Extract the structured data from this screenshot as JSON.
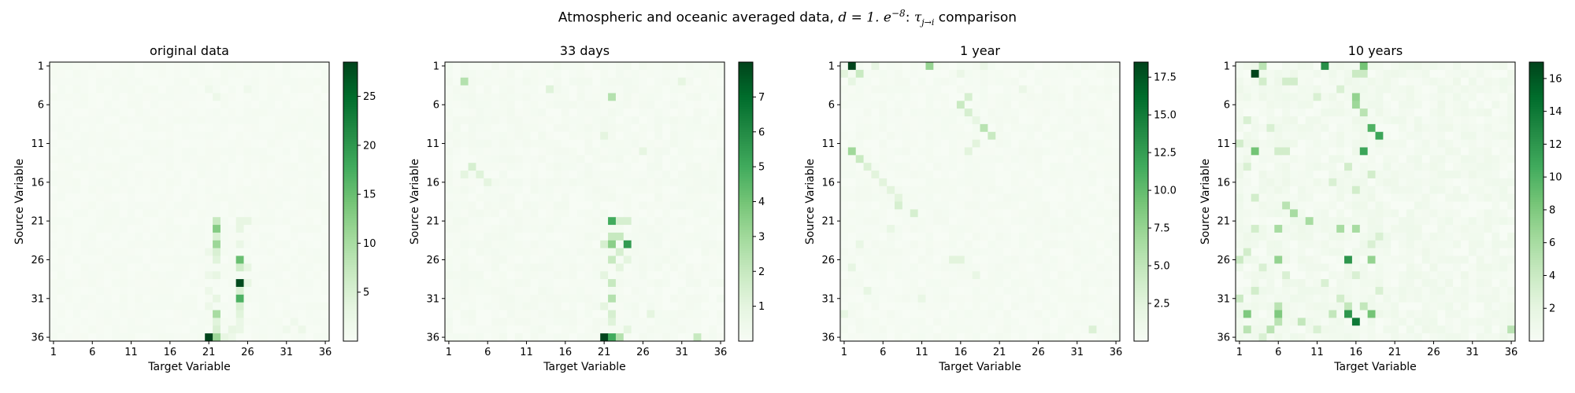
{
  "figure": {
    "suptitle_prefix": "Atmospheric and oceanic averaged data, ",
    "suptitle_math": "d = 1. e",
    "suptitle_exp": "−8",
    "suptitle_colon": ": ",
    "suptitle_tau": "τ",
    "suptitle_sub": "j→i",
    "suptitle_suffix": " comparison"
  },
  "colormap": {
    "name": "Greens",
    "stops": [
      "#f7fcf5",
      "#e5f5e0",
      "#c7e9c0",
      "#a1d99b",
      "#74c476",
      "#41ab5d",
      "#238b45",
      "#006d2c",
      "#00441b"
    ]
  },
  "chart_data": [
    {
      "type": "heatmap",
      "title": "original data",
      "xlabel": "Target Variable",
      "ylabel": "Source Variable",
      "size": 36,
      "tick_labels": [
        "1",
        "6",
        "11",
        "16",
        "21",
        "26",
        "31",
        "36"
      ],
      "vmin": 0,
      "vmax": 28.5,
      "colorbar_ticks": [
        5,
        10,
        15,
        20,
        25
      ],
      "background_level": 0.6,
      "cells": [
        {
          "s": 36,
          "t": 21,
          "v": 28.5
        },
        {
          "s": 29,
          "t": 25,
          "v": 28
        },
        {
          "s": 31,
          "t": 25,
          "v": 17
        },
        {
          "s": 26,
          "t": 25,
          "v": 15
        },
        {
          "s": 22,
          "t": 22,
          "v": 13
        },
        {
          "s": 24,
          "t": 22,
          "v": 11
        },
        {
          "s": 36,
          "t": 22,
          "v": 11
        },
        {
          "s": 33,
          "t": 22,
          "v": 10
        },
        {
          "s": 21,
          "t": 22,
          "v": 7
        },
        {
          "s": 23,
          "t": 22,
          "v": 5
        },
        {
          "s": 25,
          "t": 22,
          "v": 5
        },
        {
          "s": 26,
          "t": 22,
          "v": 4
        },
        {
          "s": 27,
          "t": 25,
          "v": 6
        },
        {
          "s": 30,
          "t": 25,
          "v": 5
        },
        {
          "s": 32,
          "t": 25,
          "v": 5
        },
        {
          "s": 35,
          "t": 22,
          "v": 5
        },
        {
          "s": 34,
          "t": 22,
          "v": 4
        },
        {
          "s": 33,
          "t": 25,
          "v": 4
        },
        {
          "s": 21,
          "t": 25,
          "v": 3
        },
        {
          "s": 22,
          "t": 25,
          "v": 3
        },
        {
          "s": 21,
          "t": 26,
          "v": 3
        },
        {
          "s": 35,
          "t": 24,
          "v": 3
        },
        {
          "s": 36,
          "t": 23,
          "v": 3
        },
        {
          "s": 27,
          "t": 26,
          "v": 3
        },
        {
          "s": 29,
          "t": 26,
          "v": 3
        },
        {
          "s": 31,
          "t": 22,
          "v": 3
        },
        {
          "s": 28,
          "t": 22,
          "v": 3
        },
        {
          "s": 28,
          "t": 21,
          "v": 2
        },
        {
          "s": 32,
          "t": 21,
          "v": 2
        },
        {
          "s": 25,
          "t": 21,
          "v": 2
        },
        {
          "s": 30,
          "t": 21,
          "v": 2
        },
        {
          "s": 24,
          "t": 25,
          "v": 2.5
        },
        {
          "s": 34,
          "t": 25,
          "v": 2.5
        },
        {
          "s": 35,
          "t": 25,
          "v": 2.5
        },
        {
          "s": 5,
          "t": 22,
          "v": 2
        },
        {
          "s": 4,
          "t": 21,
          "v": 1.5
        },
        {
          "s": 4,
          "t": 26,
          "v": 1.5
        },
        {
          "s": 35,
          "t": 33,
          "v": 2
        },
        {
          "s": 35,
          "t": 31,
          "v": 1.5
        },
        {
          "s": 34,
          "t": 32,
          "v": 1.5
        },
        {
          "s": 36,
          "t": 24,
          "v": 2
        }
      ]
    },
    {
      "type": "heatmap",
      "title": "33 days",
      "xlabel": "Target Variable",
      "ylabel": "Source Variable",
      "size": 36,
      "tick_labels": [
        "1",
        "6",
        "11",
        "16",
        "21",
        "26",
        "31",
        "36"
      ],
      "vmin": 0,
      "vmax": 8,
      "colorbar_ticks": [
        1,
        2,
        3,
        4,
        5,
        6,
        7
      ],
      "background_level": 0.25,
      "cells": [
        {
          "s": 36,
          "t": 21,
          "v": 8
        },
        {
          "s": 24,
          "t": 24,
          "v": 5.5
        },
        {
          "s": 21,
          "t": 22,
          "v": 5
        },
        {
          "s": 36,
          "t": 22,
          "v": 5
        },
        {
          "s": 24,
          "t": 22,
          "v": 3.5
        },
        {
          "s": 3,
          "t": 3,
          "v": 2.5
        },
        {
          "s": 5,
          "t": 22,
          "v": 2.5
        },
        {
          "s": 31,
          "t": 22,
          "v": 2.5
        },
        {
          "s": 36,
          "t": 23,
          "v": 2.5
        },
        {
          "s": 23,
          "t": 22,
          "v": 2
        },
        {
          "s": 23,
          "t": 23,
          "v": 2
        },
        {
          "s": 26,
          "t": 22,
          "v": 2
        },
        {
          "s": 29,
          "t": 22,
          "v": 2
        },
        {
          "s": 36,
          "t": 33,
          "v": 2
        },
        {
          "s": 21,
          "t": 23,
          "v": 1.5
        },
        {
          "s": 21,
          "t": 24,
          "v": 1.5
        },
        {
          "s": 25,
          "t": 23,
          "v": 1.5
        },
        {
          "s": 33,
          "t": 22,
          "v": 1.5
        },
        {
          "s": 34,
          "t": 22,
          "v": 1.2
        },
        {
          "s": 14,
          "t": 4,
          "v": 1.5
        },
        {
          "s": 15,
          "t": 5,
          "v": 1.2
        },
        {
          "s": 15,
          "t": 3,
          "v": 1
        },
        {
          "s": 4,
          "t": 14,
          "v": 1.2
        },
        {
          "s": 16,
          "t": 6,
          "v": 1
        },
        {
          "s": 24,
          "t": 21,
          "v": 1.5
        },
        {
          "s": 26,
          "t": 24,
          "v": 1
        },
        {
          "s": 27,
          "t": 23,
          "v": 1
        },
        {
          "s": 28,
          "t": 21,
          "v": 1
        },
        {
          "s": 32,
          "t": 21,
          "v": 1
        },
        {
          "s": 10,
          "t": 21,
          "v": 1
        },
        {
          "s": 12,
          "t": 26,
          "v": 0.9
        },
        {
          "s": 35,
          "t": 24,
          "v": 1
        },
        {
          "s": 33,
          "t": 27,
          "v": 1
        },
        {
          "s": 3,
          "t": 31,
          "v": 0.9
        }
      ]
    },
    {
      "type": "heatmap",
      "title": "1 year",
      "xlabel": "Target Variable",
      "ylabel": "Source Variable",
      "size": 36,
      "tick_labels": [
        "1",
        "6",
        "11",
        "16",
        "21",
        "26",
        "31",
        "36"
      ],
      "vmin": 0,
      "vmax": 18.5,
      "colorbar_ticks": [
        2.5,
        5.0,
        7.5,
        10.0,
        12.5,
        15.0,
        17.5
      ],
      "background_level": 0.5,
      "cells": [
        {
          "s": 1,
          "t": 2,
          "v": 18.5
        },
        {
          "s": 1,
          "t": 12,
          "v": 7.5
        },
        {
          "s": 12,
          "t": 2,
          "v": 7
        },
        {
          "s": 9,
          "t": 19,
          "v": 5.5
        },
        {
          "s": 6,
          "t": 16,
          "v": 4.5
        },
        {
          "s": 10,
          "t": 20,
          "v": 4.5
        },
        {
          "s": 2,
          "t": 3,
          "v": 4.5
        },
        {
          "s": 13,
          "t": 3,
          "v": 4.5
        },
        {
          "s": 5,
          "t": 17,
          "v": 3.5
        },
        {
          "s": 7,
          "t": 17,
          "v": 3.5
        },
        {
          "s": 19,
          "t": 8,
          "v": 3.5
        },
        {
          "s": 20,
          "t": 10,
          "v": 3.5
        },
        {
          "s": 14,
          "t": 4,
          "v": 3
        },
        {
          "s": 15,
          "t": 5,
          "v": 2.5
        },
        {
          "s": 16,
          "t": 6,
          "v": 2.5
        },
        {
          "s": 17,
          "t": 7,
          "v": 2.5
        },
        {
          "s": 18,
          "t": 8,
          "v": 2.5
        },
        {
          "s": 11,
          "t": 18,
          "v": 2.5
        },
        {
          "s": 12,
          "t": 17,
          "v": 2.5
        },
        {
          "s": 35,
          "t": 33,
          "v": 3
        },
        {
          "s": 26,
          "t": 15,
          "v": 2.5
        },
        {
          "s": 26,
          "t": 16,
          "v": 2.5
        },
        {
          "s": 8,
          "t": 18,
          "v": 2
        },
        {
          "s": 1,
          "t": 5,
          "v": 2
        },
        {
          "s": 2,
          "t": 1,
          "v": 2.5
        },
        {
          "s": 3,
          "t": 2,
          "v": 2
        },
        {
          "s": 27,
          "t": 2,
          "v": 2
        },
        {
          "s": 33,
          "t": 1,
          "v": 2
        },
        {
          "s": 30,
          "t": 4,
          "v": 2
        },
        {
          "s": 22,
          "t": 7,
          "v": 1.8
        },
        {
          "s": 24,
          "t": 3,
          "v": 1.8
        },
        {
          "s": 28,
          "t": 18,
          "v": 1.8
        },
        {
          "s": 31,
          "t": 11,
          "v": 1.8
        },
        {
          "s": 1,
          "t": 19,
          "v": 1.5
        },
        {
          "s": 2,
          "t": 16,
          "v": 1.5
        },
        {
          "s": 4,
          "t": 24,
          "v": 1.5
        }
      ]
    },
    {
      "type": "heatmap",
      "title": "10 years",
      "xlabel": "Target Variable",
      "ylabel": "Source Variable",
      "size": 36,
      "tick_labels": [
        "1",
        "6",
        "11",
        "16",
        "21",
        "26",
        "31",
        "36"
      ],
      "vmin": 0,
      "vmax": 17,
      "colorbar_ticks": [
        2,
        4,
        6,
        8,
        10,
        12,
        14,
        16
      ],
      "background_level": 1.0,
      "cells": [
        {
          "s": 2,
          "t": 3,
          "v": 17
        },
        {
          "s": 34,
          "t": 16,
          "v": 14
        },
        {
          "s": 1,
          "t": 12,
          "v": 12.5
        },
        {
          "s": 26,
          "t": 15,
          "v": 12
        },
        {
          "s": 33,
          "t": 15,
          "v": 12
        },
        {
          "s": 10,
          "t": 19,
          "v": 11
        },
        {
          "s": 12,
          "t": 17,
          "v": 11
        },
        {
          "s": 9,
          "t": 18,
          "v": 10
        },
        {
          "s": 1,
          "t": 17,
          "v": 8.5
        },
        {
          "s": 12,
          "t": 3,
          "v": 8.5
        },
        {
          "s": 33,
          "t": 18,
          "v": 8.5
        },
        {
          "s": 33,
          "t": 2,
          "v": 8
        },
        {
          "s": 33,
          "t": 6,
          "v": 8
        },
        {
          "s": 26,
          "t": 6,
          "v": 7
        },
        {
          "s": 26,
          "t": 18,
          "v": 7
        },
        {
          "s": 5,
          "t": 16,
          "v": 7
        },
        {
          "s": 6,
          "t": 16,
          "v": 6.5
        },
        {
          "s": 20,
          "t": 8,
          "v": 6
        },
        {
          "s": 21,
          "t": 10,
          "v": 6
        },
        {
          "s": 22,
          "t": 6,
          "v": 6
        },
        {
          "s": 22,
          "t": 14,
          "v": 6
        },
        {
          "s": 22,
          "t": 16,
          "v": 6
        },
        {
          "s": 19,
          "t": 7,
          "v": 5
        },
        {
          "s": 1,
          "t": 4,
          "v": 5
        },
        {
          "s": 7,
          "t": 17,
          "v": 5
        },
        {
          "s": 2,
          "t": 16,
          "v": 4
        },
        {
          "s": 2,
          "t": 17,
          "v": 4
        },
        {
          "s": 35,
          "t": 2,
          "v": 5
        },
        {
          "s": 35,
          "t": 36,
          "v": 5
        },
        {
          "s": 35,
          "t": 5,
          "v": 5
        },
        {
          "s": 32,
          "t": 6,
          "v": 5
        },
        {
          "s": 34,
          "t": 6,
          "v": 5
        },
        {
          "s": 34,
          "t": 9,
          "v": 4.5
        },
        {
          "s": 33,
          "t": 13,
          "v": 4.5
        },
        {
          "s": 32,
          "t": 15,
          "v": 4.5
        },
        {
          "s": 32,
          "t": 17,
          "v": 4.5
        },
        {
          "s": 31,
          "t": 1,
          "v": 4
        },
        {
          "s": 30,
          "t": 3,
          "v": 3.5
        },
        {
          "s": 26,
          "t": 1,
          "v": 4
        },
        {
          "s": 25,
          "t": 2,
          "v": 3.5
        },
        {
          "s": 22,
          "t": 3,
          "v": 3.5
        },
        {
          "s": 18,
          "t": 3,
          "v": 3.5
        },
        {
          "s": 12,
          "t": 6,
          "v": 3.5
        },
        {
          "s": 12,
          "t": 7,
          "v": 3.5
        },
        {
          "s": 3,
          "t": 7,
          "v": 3.5
        },
        {
          "s": 3,
          "t": 8,
          "v": 3.5
        },
        {
          "s": 3,
          "t": 4,
          "v": 3.5
        },
        {
          "s": 11,
          "t": 1,
          "v": 3.5
        },
        {
          "s": 14,
          "t": 15,
          "v": 3.5
        },
        {
          "s": 15,
          "t": 18,
          "v": 3.5
        },
        {
          "s": 17,
          "t": 16,
          "v": 3.5
        },
        {
          "s": 16,
          "t": 13,
          "v": 3
        },
        {
          "s": 23,
          "t": 19,
          "v": 3
        },
        {
          "s": 24,
          "t": 18,
          "v": 3
        },
        {
          "s": 28,
          "t": 16,
          "v": 3
        },
        {
          "s": 29,
          "t": 12,
          "v": 3
        },
        {
          "s": 30,
          "t": 19,
          "v": 3
        },
        {
          "s": 31,
          "t": 14,
          "v": 3.5
        },
        {
          "s": 35,
          "t": 11,
          "v": 3
        },
        {
          "s": 36,
          "t": 4,
          "v": 3
        },
        {
          "s": 4,
          "t": 14,
          "v": 3
        },
        {
          "s": 5,
          "t": 11,
          "v": 3
        },
        {
          "s": 8,
          "t": 2,
          "v": 3
        },
        {
          "s": 9,
          "t": 5,
          "v": 3
        },
        {
          "s": 14,
          "t": 2,
          "v": 3
        },
        {
          "s": 27,
          "t": 4,
          "v": 3
        },
        {
          "s": 28,
          "t": 7,
          "v": 3
        }
      ]
    }
  ]
}
